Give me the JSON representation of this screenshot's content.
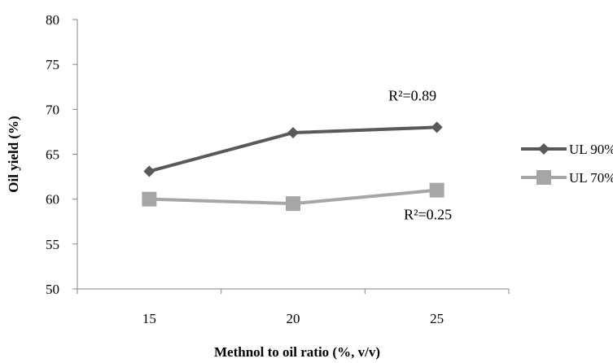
{
  "chart_data": {
    "type": "line",
    "xlabel": "Methnol to oil ratio (%, v/v)",
    "ylabel": "Oil yield (%)",
    "categories": [
      "15",
      "20",
      "25"
    ],
    "ylim": [
      50,
      80
    ],
    "yticks": [
      50,
      55,
      60,
      65,
      70,
      75,
      80
    ],
    "grid": false,
    "legend_position": "right",
    "series": [
      {
        "name": "UL 90%",
        "values": [
          63.1,
          67.4,
          68.0
        ],
        "color": "#595959",
        "marker": "diamond"
      },
      {
        "name": "UL 70%",
        "values": [
          60.0,
          59.5,
          61.0
        ],
        "color": "#a6a6a6",
        "marker": "square"
      }
    ],
    "annotations": [
      {
        "text": "R²=0.89",
        "series": 0,
        "category": "25"
      },
      {
        "text": "R²=0.25",
        "series": 1,
        "category": "25"
      }
    ]
  }
}
